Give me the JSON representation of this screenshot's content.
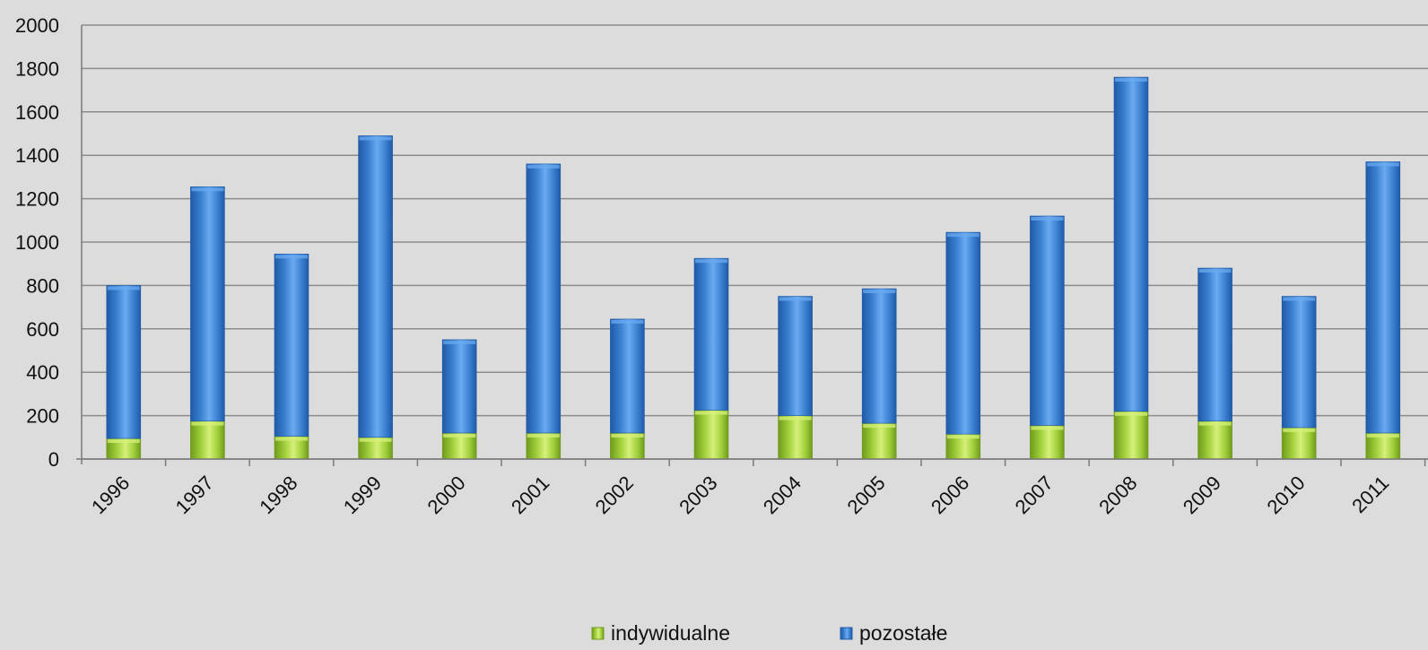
{
  "colors": {
    "background": "#dcdcdc",
    "gridline": "#8c8c8c",
    "axis": "#7a7a7a",
    "indywidualne": "#9fcf3a",
    "indywidualne_light": "#d6f07a",
    "indywidualne_dark": "#6f9a1c",
    "pozostale": "#3a7fd0",
    "pozostale_light": "#6aaaf0",
    "pozostale_dark": "#1f5aa8"
  },
  "chart_data": {
    "type": "bar",
    "stacked": true,
    "title": "",
    "xlabel": "",
    "ylabel": "",
    "ylim": [
      0,
      2000
    ],
    "yticks": [
      0,
      200,
      400,
      600,
      800,
      1000,
      1200,
      1400,
      1600,
      1800,
      2000
    ],
    "grid": true,
    "legend_position": "bottom",
    "categories": [
      "1996",
      "1997",
      "1998",
      "1999",
      "2000",
      "2001",
      "2002",
      "2003",
      "2004",
      "2005",
      "2006",
      "2007",
      "2008",
      "2009",
      "2010",
      "2011"
    ],
    "series": [
      {
        "name": "indywidualne",
        "values": [
          95,
          175,
          105,
          100,
          120,
          120,
          120,
          225,
          200,
          165,
          115,
          155,
          220,
          175,
          145,
          120
        ]
      },
      {
        "name": "pozostałe",
        "values": [
          705,
          1080,
          840,
          1390,
          430,
          1240,
          525,
          700,
          550,
          620,
          930,
          965,
          1540,
          705,
          605,
          1250
        ]
      }
    ]
  }
}
